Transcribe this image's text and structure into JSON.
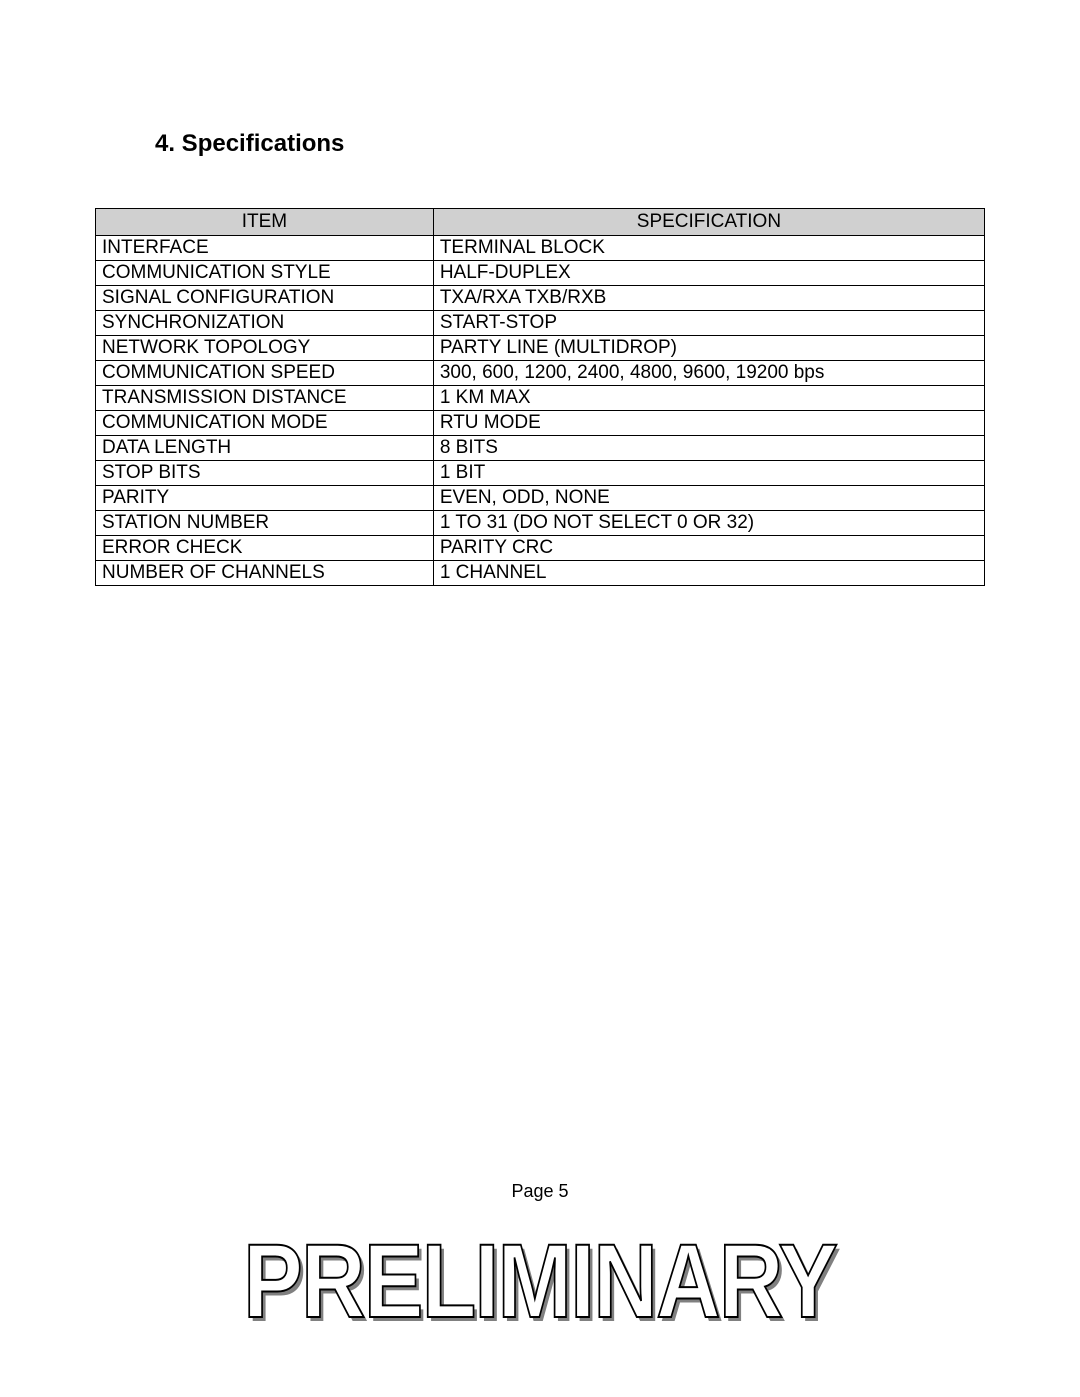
{
  "section_title": "4.  Specifications",
  "table": {
    "header_bg": "#d0d0d0",
    "border_color": "#000000",
    "font_size": 19,
    "columns": [
      "ITEM",
      "SPECIFICATION"
    ],
    "rows": [
      [
        "INTERFACE",
        "TERMINAL BLOCK"
      ],
      [
        "COMMUNICATION STYLE",
        "HALF-DUPLEX"
      ],
      [
        "SIGNAL CONFIGURATION",
        "TXA/RXA  TXB/RXB"
      ],
      [
        "SYNCHRONIZATION",
        "START-STOP"
      ],
      [
        "NETWORK TOPOLOGY",
        "PARTY LINE (MULTIDROP)"
      ],
      [
        "COMMUNICATION SPEED",
        "300, 600, 1200, 2400, 4800, 9600, 19200 bps"
      ],
      [
        "TRANSMISSION DISTANCE",
        "1 KM MAX"
      ],
      [
        "COMMUNICATION MODE",
        "RTU MODE"
      ],
      [
        "DATA LENGTH",
        "8 BITS"
      ],
      [
        "STOP BITS",
        "1 BIT"
      ],
      [
        "PARITY",
        "EVEN, ODD, NONE"
      ],
      [
        "STATION NUMBER",
        "1 TO 31 (DO NOT SELECT 0 OR 32)"
      ],
      [
        "ERROR CHECK",
        "PARITY CRC"
      ],
      [
        "NUMBER OF CHANNELS",
        "1 CHANNEL"
      ]
    ]
  },
  "footer": {
    "page_label": "Page   5"
  },
  "watermark": {
    "text": "PRELIMINARY",
    "outline_color": "#000000",
    "shadow_color": "#808080",
    "fill_color": "#ffffff",
    "font_size": 105
  }
}
